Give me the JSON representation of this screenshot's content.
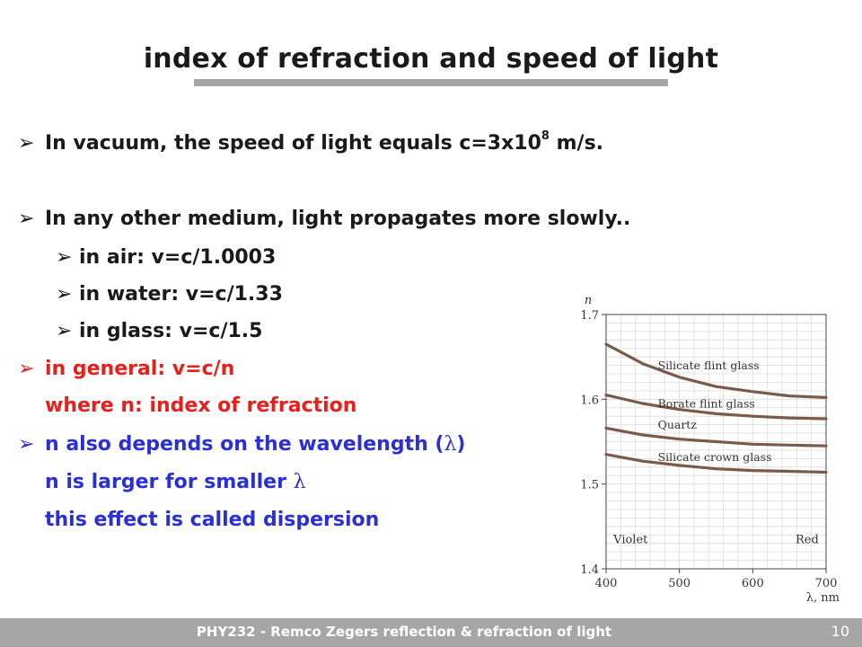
{
  "slide": {
    "title": "index of refraction and speed of light",
    "bullets": {
      "b1_text": "In vacuum, the speed of light equals c=3x10",
      "b1_sup": "8",
      "b1_tail": " m/s.",
      "b2": "In any other medium, light propagates more slowly..",
      "b2a": "in air:  v=c/1.0003",
      "b2b": "in water: v=c/1.33",
      "b2c": "in glass: v=c/1.5",
      "b3_line1": "in general:  v=c/n",
      "b3_line2": "where n: index of refraction",
      "b4_line1": "n also depends on the wavelength (",
      "b4_lambda": "λ",
      "b4_close": ")",
      "b4_line2": "n is larger for smaller ",
      "b4_line2_lambda": "λ",
      "b4_line3": "this effect is called dispersion"
    },
    "arrow_glyph": "➢",
    "footer": "PHY232 - Remco Zegers  reflection & refraction of light",
    "page_number": "10",
    "colors": {
      "black": "#1a1a1a",
      "red": "#e8201c",
      "blue": "#2b2fd6",
      "bar": "#a6a6a6"
    }
  },
  "chart_data": {
    "type": "line",
    "ylabel": "n",
    "xlabel": "λ, nm",
    "xlim": [
      400,
      700
    ],
    "ylim": [
      1.4,
      1.7
    ],
    "x_ticks": [
      "400",
      "500",
      "600",
      "700"
    ],
    "y_ticks": [
      "1.4",
      "1.5",
      "1.6",
      "1.7"
    ],
    "grid": true,
    "annotations": {
      "left": "Violet",
      "right": "Red"
    },
    "series": [
      {
        "name": "Silicate flint glass",
        "x": [
          400,
          450,
          500,
          550,
          600,
          650,
          700
        ],
        "values": [
          1.665,
          1.642,
          1.626,
          1.615,
          1.609,
          1.604,
          1.602
        ]
      },
      {
        "name": "Borate flint glass",
        "x": [
          400,
          450,
          500,
          550,
          600,
          650,
          700
        ],
        "values": [
          1.605,
          1.595,
          1.588,
          1.583,
          1.58,
          1.578,
          1.577
        ]
      },
      {
        "name": "Quartz",
        "x": [
          400,
          450,
          500,
          550,
          600,
          650,
          700
        ],
        "values": [
          1.566,
          1.558,
          1.553,
          1.55,
          1.547,
          1.546,
          1.545
        ]
      },
      {
        "name": "Silicate crown glass",
        "x": [
          400,
          450,
          500,
          550,
          600,
          650,
          700
        ],
        "values": [
          1.535,
          1.527,
          1.522,
          1.518,
          1.516,
          1.515,
          1.514
        ]
      }
    ]
  }
}
